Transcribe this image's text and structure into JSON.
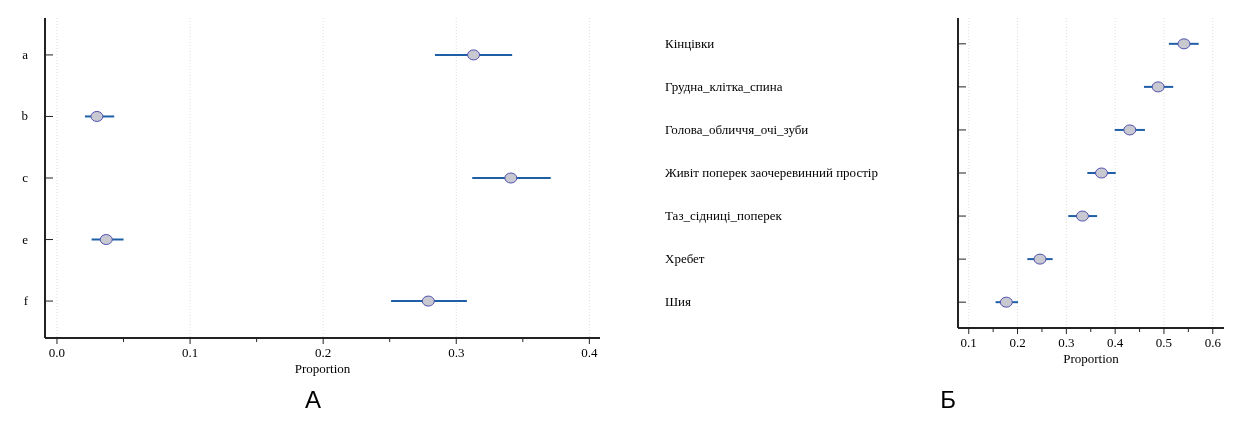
{
  "chart_data": [
    {
      "type": "scatter",
      "orientation": "horizontal",
      "title": "А",
      "xlabel": "Proportion",
      "categories": [
        "a",
        "b",
        "c",
        "e",
        "f"
      ],
      "series": [
        {
          "color": "#c8c8d0",
          "values": [
            0.313,
            0.03,
            0.341,
            0.037,
            0.279
          ],
          "errors": [
            [
              0.284,
              0.342
            ],
            [
              0.021,
              0.043
            ],
            [
              0.312,
              0.371
            ],
            [
              0.026,
              0.05
            ],
            [
              0.251,
              0.308
            ]
          ]
        }
      ],
      "xlim": [
        -0.009,
        0.408
      ],
      "xticks": [
        {
          "value": 0,
          "label": "0.0"
        },
        {
          "value": 0.05,
          "label": null
        },
        0.1,
        {
          "value": 0.15,
          "label": null
        },
        0.2,
        {
          "value": 0.25,
          "label": null
        },
        0.3,
        {
          "value": 0.35,
          "label": null
        },
        0.4
      ],
      "grid": "x",
      "marker": "circle"
    },
    {
      "type": "scatter",
      "orientation": "horizontal",
      "title": "Б",
      "xlabel": "Proportion",
      "categories": [
        "Кінцівки",
        "Грудна_клітка_спина",
        "Голова_обличчя_очі_зуби",
        "Живіт поперек заочеревинний простір",
        "Таз_сідниці_поперек",
        "Хребет",
        "Шия"
      ],
      "series": [
        {
          "color": "#c8c8d0",
          "values": [
            0.541,
            0.488,
            0.43,
            0.372,
            0.333,
            0.246,
            0.177
          ],
          "errors": [
            [
              0.51,
              0.571
            ],
            [
              0.459,
              0.519
            ],
            [
              0.399,
              0.461
            ],
            [
              0.343,
              0.401
            ],
            [
              0.304,
              0.363
            ],
            [
              0.22,
              0.272
            ],
            [
              0.155,
              0.201
            ]
          ]
        }
      ],
      "xlim": [
        0.078,
        0.623
      ],
      "xticks": [
        0.1,
        {
          "value": 0.15,
          "label": null
        },
        0.2,
        {
          "value": 0.25,
          "label": null
        },
        0.3,
        {
          "value": 0.35,
          "label": null
        },
        0.4,
        {
          "value": 0.45,
          "label": null
        },
        0.5,
        {
          "value": 0.55,
          "label": null
        },
        0.6
      ],
      "grid": "x",
      "marker": "circle"
    }
  ]
}
